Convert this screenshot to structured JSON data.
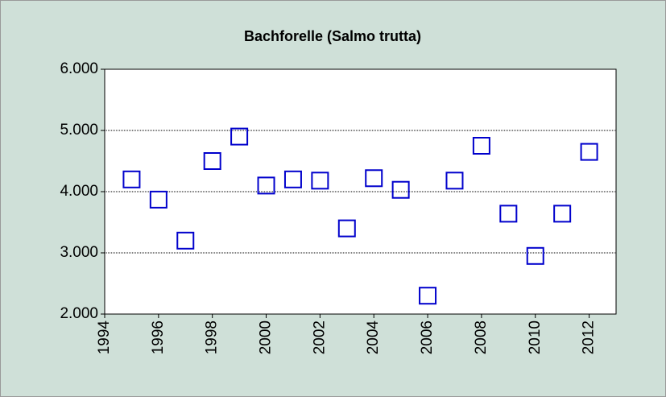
{
  "chart_data": {
    "type": "scatter",
    "title": "Bachforelle (Salmo trutta)",
    "x": [
      1995,
      1996,
      1997,
      1998,
      1999,
      2000,
      2001,
      2002,
      2003,
      2004,
      2005,
      2006,
      2007,
      2008,
      2009,
      2010,
      2011,
      2012
    ],
    "series": [
      {
        "color": "#0000cc",
        "values": [
          4200,
          3870,
          3200,
          4500,
          4900,
          4100,
          4200,
          4180,
          3400,
          4220,
          4030,
          2300,
          4180,
          4750,
          3640,
          2950,
          3640,
          4650
        ]
      }
    ],
    "xlim": [
      1994,
      2013
    ],
    "xticks": [
      1994,
      1996,
      1998,
      2000,
      2002,
      2004,
      2006,
      2008,
      2010,
      2012
    ],
    "ylim": [
      2000,
      6000
    ],
    "yticks": [
      {
        "value": 2000,
        "label": "2.000"
      },
      {
        "value": 3000,
        "label": "3.000"
      },
      {
        "value": 4000,
        "label": "4.000"
      },
      {
        "value": 5000,
        "label": "5.000"
      },
      {
        "value": 6000,
        "label": "6.000"
      }
    ],
    "grid": true
  }
}
